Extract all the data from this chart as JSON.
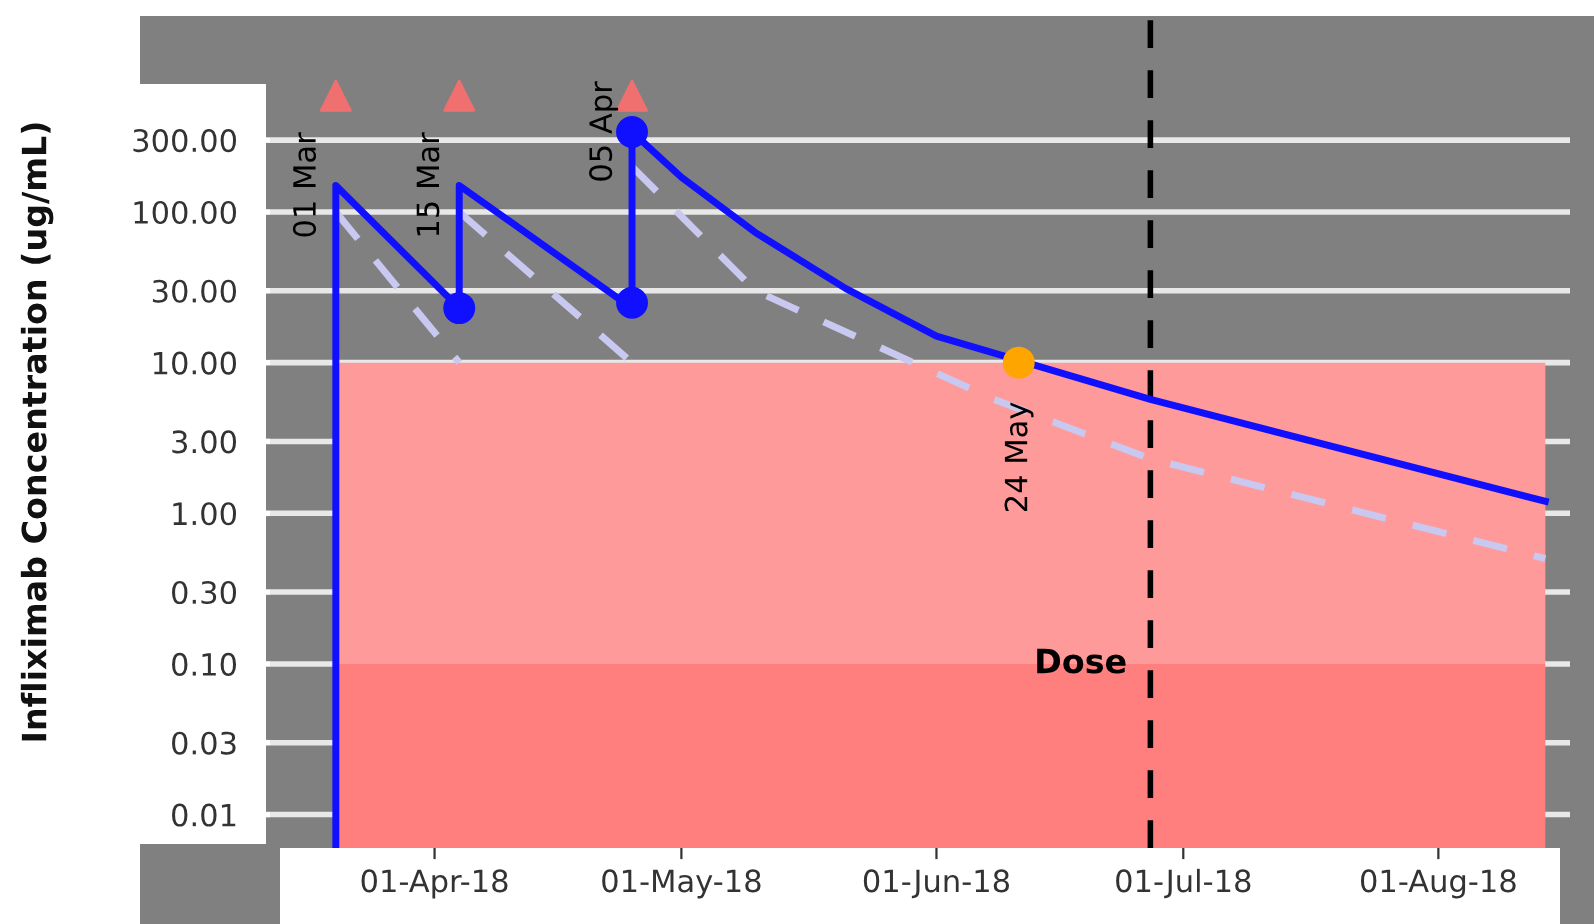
{
  "chart_data": {
    "type": "line",
    "ylabel": "Infliximab Concentration (ug/mL)",
    "series": [
      {
        "color": "#1010ff",
        "line_style": "solid",
        "marker": "none",
        "x": [
          "2018-03-20",
          "2018-03-20",
          "2018-04-04",
          "2018-04-04",
          "2018-04-25",
          "2018-04-25",
          "2018-05-01",
          "2018-05-10",
          "2018-05-21",
          "2018-06-01",
          "2018-06-27",
          "2018-08-14"
        ],
        "values": [
          0.006,
          150,
          23,
          150,
          23,
          340,
          170,
          73,
          31,
          15,
          5.7,
          1.2
        ]
      },
      {
        "color": "#c8c8f0",
        "line_style": "dashed",
        "marker": "none",
        "x": [
          "2018-03-20",
          "2018-04-04"
        ],
        "values": [
          100,
          10
        ]
      },
      {
        "color": "#c8c8f0",
        "line_style": "dashed",
        "marker": "none",
        "x": [
          "2018-04-04",
          "2018-04-25"
        ],
        "values": [
          100,
          10
        ]
      },
      {
        "color": "#c8c8f0",
        "line_style": "dashed",
        "marker": "none",
        "x": [
          "2018-04-25",
          "2018-05-10",
          "2018-06-08",
          "2018-06-27",
          "2018-08-14"
        ],
        "values": [
          200,
          30,
          5.7,
          2.3,
          0.5
        ]
      },
      {
        "type": "scatter",
        "color": "#1010ff",
        "marker": "circle",
        "x": [
          "2018-04-04",
          "2018-04-25",
          "2018-04-25"
        ],
        "values": [
          23,
          25,
          340
        ]
      },
      {
        "type": "scatter",
        "color": "#ffa500",
        "marker": "circle",
        "x": [
          "2018-06-11"
        ],
        "values": [
          10
        ]
      },
      {
        "type": "scatter",
        "color": "#f07070",
        "marker": "triangle",
        "x": [
          "2018-03-20",
          "2018-04-04",
          "2018-04-25"
        ],
        "values": [
          590,
          590,
          590
        ]
      }
    ],
    "xlim": [
      "2018-03-12",
      "2018-08-17"
    ],
    "xticks": [
      {
        "value": "2018-04-01",
        "label": "01-Apr-18"
      },
      {
        "value": "2018-05-01",
        "label": "01-May-18"
      },
      {
        "value": "2018-06-01",
        "label": "01-Jun-18"
      },
      {
        "value": "2018-07-01",
        "label": "01-Jul-18"
      },
      {
        "value": "2018-08-01",
        "label": "01-Aug-18"
      }
    ],
    "log": true,
    "ylim": [
      0.006,
      2000
    ],
    "yticks": [
      {
        "value": 0.01,
        "label": "0.01"
      },
      {
        "value": 0.03,
        "label": "0.03"
      },
      {
        "value": 0.1,
        "label": "0.10"
      },
      {
        "value": 0.3,
        "label": "0.30"
      },
      {
        "value": 1,
        "label": "1.00"
      },
      {
        "value": 3,
        "label": "3.00"
      },
      {
        "value": 10,
        "label": "10.00"
      },
      {
        "value": 30,
        "label": "30.00"
      },
      {
        "value": 100,
        "label": "100.00"
      },
      {
        "value": 300,
        "label": "300.00"
      }
    ],
    "grid": "y",
    "bands": [
      {
        "axis": "y",
        "from": 0.006,
        "to": 0.1,
        "color": "#ff7f7f"
      },
      {
        "axis": "y",
        "from": 0.1,
        "to": 10,
        "color": "#ff9a9a"
      }
    ],
    "ref_lines": [
      {
        "axis": "x",
        "value": "2018-06-27",
        "label": "Dose",
        "color": "#000000",
        "line_style": "dashed"
      }
    ],
    "annotations": [
      {
        "text": "01 Mar",
        "x": "2018-03-20",
        "y": 150
      },
      {
        "text": "15 Mar",
        "x": "2018-04-04",
        "y": 150
      },
      {
        "text": "05 Apr",
        "x": "2018-04-25",
        "y": 340
      },
      {
        "text": "24 May",
        "x": "2018-06-11",
        "y": 10
      }
    ]
  }
}
